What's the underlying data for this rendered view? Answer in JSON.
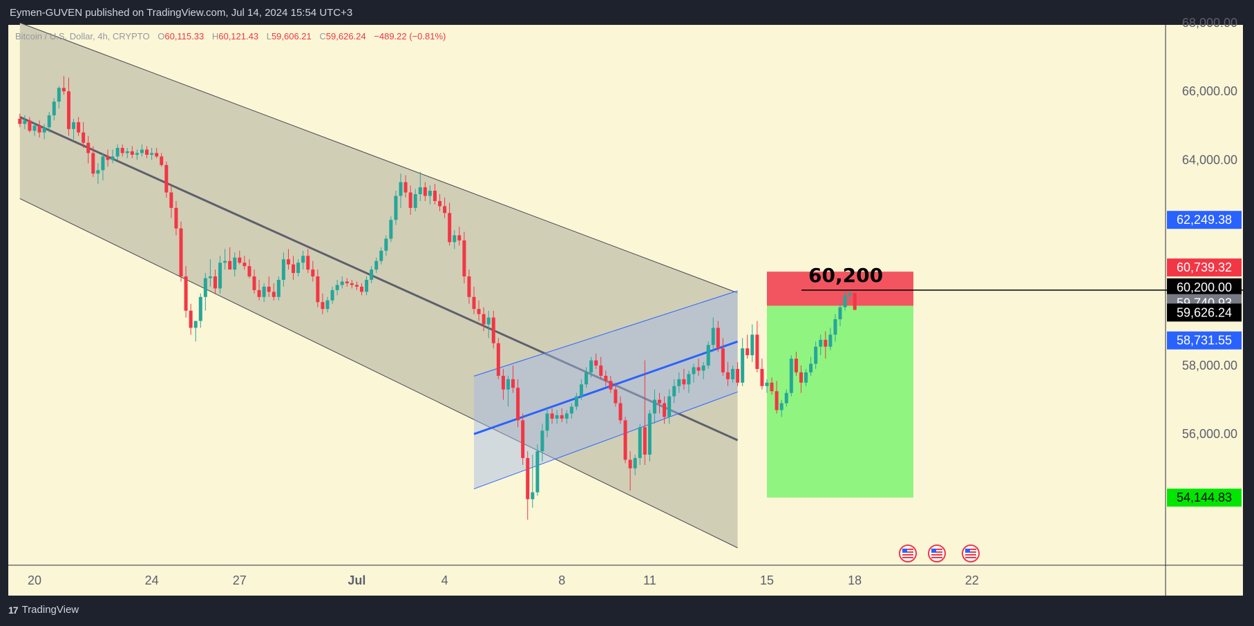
{
  "header": {
    "publisher": "Eymen-GUVEN published on TradingView.com, Jul 14, 2024 15:54 UTC+3"
  },
  "legend": {
    "symbol": "Bitcoin / U.S. Dollar, 4h, CRYPTO",
    "o_label": "O",
    "o_value": "60,115.33",
    "h_label": "H",
    "h_value": "60,121.43",
    "l_label": "L",
    "l_value": "59,606.21",
    "c_label": "C",
    "c_value": "59,626.24",
    "change": "−489.22 (−0.81%)"
  },
  "footer": {
    "brand": "TradingView",
    "logo_mark": "17"
  },
  "colors": {
    "background": "#fbf6d6",
    "up": "#26a69a",
    "down": "#f23645",
    "frame": "#1e222d"
  },
  "chart_data": {
    "type": "candlestick",
    "title": "Bitcoin / U.S. Dollar, 4h, CRYPTO",
    "ylim": [
      52000,
      68000
    ],
    "y_ticks": [
      "68,000.00",
      "66,000.00",
      "64,000.00",
      "58,000.00",
      "56,000.00"
    ],
    "x_ticks": [
      "20",
      "24",
      "27",
      "Jul",
      "4",
      "8",
      "11",
      "15",
      "18",
      "22"
    ],
    "price_tags": [
      {
        "text": "62,249.38",
        "value": 62249.38,
        "bg": "#2962ff",
        "fg": "#ffffff"
      },
      {
        "text": "60,739.32",
        "value": 60739.32,
        "bg": "#f23645",
        "fg": "#ffffff"
      },
      {
        "text": "60,200.00",
        "value": 60200.0,
        "bg": "#000000",
        "fg": "#ffffff"
      },
      {
        "text": "59,740.93",
        "value": 59740.93,
        "bg": "#787b86",
        "fg": "#ffffff"
      },
      {
        "text": "59,626.24",
        "value": 59626.24,
        "bg": "#000000",
        "fg": "#ffffff"
      },
      {
        "text": "58,731.55",
        "value": 58731.55,
        "bg": "#2962ff",
        "fg": "#ffffff"
      },
      {
        "text": "54,144.83",
        "value": 54144.83,
        "bg": "#00e600",
        "fg": "#000000"
      }
    ],
    "annotations": [
      {
        "text": "60,200",
        "value": 60200
      }
    ],
    "position_tool": {
      "entry": 59740.93,
      "stop": 60739.32,
      "target": 54144.83,
      "start": "Jul 15",
      "end": "Jul 20"
    },
    "descending_channel": {
      "upper": [
        [
          "Jun 19 12:00",
          68000
        ],
        [
          "Jul 14",
          60120
        ]
      ],
      "middle": [
        [
          "Jun 19 12:00",
          65250
        ],
        [
          "Jul 14",
          55820
        ]
      ],
      "lower": [
        [
          "Jun 19 12:00",
          62870
        ],
        [
          "Jul 14",
          52680
        ]
      ]
    },
    "ascending_channel": {
      "upper": [
        [
          "Jul 5",
          57690
        ],
        [
          "Jul 14",
          60180
        ]
      ],
      "middle": [
        [
          "Jul 5",
          56000
        ],
        [
          "Jul 14",
          58700
        ]
      ],
      "lower": [
        [
          "Jul 5",
          54400
        ],
        [
          "Jul 14",
          57230
        ]
      ]
    },
    "candles": [
      {
        "o": 65200,
        "h": 65350,
        "l": 64950,
        "c": 65050
      },
      {
        "o": 65050,
        "h": 65300,
        "l": 64900,
        "c": 65150
      },
      {
        "o": 65150,
        "h": 65250,
        "l": 64800,
        "c": 64850
      },
      {
        "o": 64850,
        "h": 65100,
        "l": 64700,
        "c": 65000
      },
      {
        "o": 65000,
        "h": 65150,
        "l": 64650,
        "c": 64800
      },
      {
        "o": 64800,
        "h": 65050,
        "l": 64600,
        "c": 64950
      },
      {
        "o": 64950,
        "h": 65400,
        "l": 64800,
        "c": 65300
      },
      {
        "o": 65300,
        "h": 65800,
        "l": 65150,
        "c": 65700
      },
      {
        "o": 65700,
        "h": 66150,
        "l": 65500,
        "c": 66100
      },
      {
        "o": 66100,
        "h": 66450,
        "l": 65900,
        "c": 66000
      },
      {
        "o": 66000,
        "h": 66400,
        "l": 64700,
        "c": 64900
      },
      {
        "o": 64900,
        "h": 65200,
        "l": 64600,
        "c": 65100
      },
      {
        "o": 65100,
        "h": 65250,
        "l": 64700,
        "c": 64800
      },
      {
        "o": 64800,
        "h": 65100,
        "l": 64350,
        "c": 64500
      },
      {
        "o": 64500,
        "h": 64700,
        "l": 63900,
        "c": 64200
      },
      {
        "o": 64200,
        "h": 64400,
        "l": 63500,
        "c": 63600
      },
      {
        "o": 63600,
        "h": 63900,
        "l": 63300,
        "c": 63700
      },
      {
        "o": 63700,
        "h": 64200,
        "l": 63400,
        "c": 64100
      },
      {
        "o": 64100,
        "h": 64300,
        "l": 63800,
        "c": 64000
      },
      {
        "o": 64000,
        "h": 64300,
        "l": 63900,
        "c": 64100
      },
      {
        "o": 64100,
        "h": 64450,
        "l": 64000,
        "c": 64350
      },
      {
        "o": 64350,
        "h": 64450,
        "l": 64100,
        "c": 64200
      },
      {
        "o": 64200,
        "h": 64350,
        "l": 64050,
        "c": 64250
      },
      {
        "o": 64250,
        "h": 64400,
        "l": 64050,
        "c": 64150
      },
      {
        "o": 64150,
        "h": 64300,
        "l": 64000,
        "c": 64200
      },
      {
        "o": 64200,
        "h": 64450,
        "l": 64100,
        "c": 64300
      },
      {
        "o": 64300,
        "h": 64400,
        "l": 64050,
        "c": 64150
      },
      {
        "o": 64150,
        "h": 64350,
        "l": 64000,
        "c": 64200
      },
      {
        "o": 64200,
        "h": 64350,
        "l": 64050,
        "c": 64100
      },
      {
        "o": 64100,
        "h": 64200,
        "l": 63800,
        "c": 63850
      },
      {
        "o": 63850,
        "h": 63950,
        "l": 62900,
        "c": 63050
      },
      {
        "o": 63050,
        "h": 63300,
        "l": 62300,
        "c": 62600
      },
      {
        "o": 62600,
        "h": 62800,
        "l": 61800,
        "c": 62000
      },
      {
        "o": 62000,
        "h": 62200,
        "l": 60450,
        "c": 60600
      },
      {
        "o": 60600,
        "h": 60900,
        "l": 59400,
        "c": 59600
      },
      {
        "o": 59600,
        "h": 59800,
        "l": 58900,
        "c": 59100
      },
      {
        "o": 59100,
        "h": 59300,
        "l": 58700,
        "c": 59300
      },
      {
        "o": 59300,
        "h": 60100,
        "l": 59100,
        "c": 60000
      },
      {
        "o": 60000,
        "h": 60700,
        "l": 59600,
        "c": 60550
      },
      {
        "o": 60550,
        "h": 61100,
        "l": 60300,
        "c": 60600
      },
      {
        "o": 60600,
        "h": 60800,
        "l": 60100,
        "c": 60250
      },
      {
        "o": 60250,
        "h": 61200,
        "l": 60100,
        "c": 61000
      },
      {
        "o": 61000,
        "h": 61400,
        "l": 60800,
        "c": 61050
      },
      {
        "o": 61050,
        "h": 61450,
        "l": 60900,
        "c": 60800
      },
      {
        "o": 60800,
        "h": 61300,
        "l": 60600,
        "c": 61150
      },
      {
        "o": 61150,
        "h": 61350,
        "l": 60950,
        "c": 61000
      },
      {
        "o": 61000,
        "h": 61200,
        "l": 60800,
        "c": 60900
      },
      {
        "o": 60900,
        "h": 61100,
        "l": 60550,
        "c": 60600
      },
      {
        "o": 60600,
        "h": 60800,
        "l": 60100,
        "c": 60200
      },
      {
        "o": 60200,
        "h": 60500,
        "l": 59900,
        "c": 60000
      },
      {
        "o": 60000,
        "h": 60400,
        "l": 59850,
        "c": 60300
      },
      {
        "o": 60300,
        "h": 60600,
        "l": 60000,
        "c": 60150
      },
      {
        "o": 60150,
        "h": 60400,
        "l": 59900,
        "c": 60000
      },
      {
        "o": 60000,
        "h": 60600,
        "l": 59900,
        "c": 60500
      },
      {
        "o": 60500,
        "h": 61300,
        "l": 60300,
        "c": 61100
      },
      {
        "o": 61100,
        "h": 61400,
        "l": 60800,
        "c": 60950
      },
      {
        "o": 60950,
        "h": 61200,
        "l": 60500,
        "c": 60700
      },
      {
        "o": 60700,
        "h": 61100,
        "l": 60600,
        "c": 61000
      },
      {
        "o": 61000,
        "h": 61350,
        "l": 60800,
        "c": 61200
      },
      {
        "o": 61200,
        "h": 61400,
        "l": 60700,
        "c": 60800
      },
      {
        "o": 60800,
        "h": 61050,
        "l": 60450,
        "c": 60600
      },
      {
        "o": 60600,
        "h": 60800,
        "l": 59700,
        "c": 59850
      },
      {
        "o": 59850,
        "h": 60100,
        "l": 59500,
        "c": 59650
      },
      {
        "o": 59650,
        "h": 60000,
        "l": 59550,
        "c": 59900
      },
      {
        "o": 59900,
        "h": 60300,
        "l": 59800,
        "c": 60200
      },
      {
        "o": 60200,
        "h": 60500,
        "l": 60050,
        "c": 60350
      },
      {
        "o": 60350,
        "h": 60600,
        "l": 60250,
        "c": 60450
      },
      {
        "o": 60450,
        "h": 60550,
        "l": 60300,
        "c": 60400
      },
      {
        "o": 60400,
        "h": 60500,
        "l": 60250,
        "c": 60350
      },
      {
        "o": 60350,
        "h": 60450,
        "l": 60200,
        "c": 60300
      },
      {
        "o": 60300,
        "h": 60400,
        "l": 60050,
        "c": 60150
      },
      {
        "o": 60150,
        "h": 60600,
        "l": 60050,
        "c": 60500
      },
      {
        "o": 60500,
        "h": 60900,
        "l": 60400,
        "c": 60800
      },
      {
        "o": 60800,
        "h": 61150,
        "l": 60700,
        "c": 61050
      },
      {
        "o": 61050,
        "h": 61450,
        "l": 60950,
        "c": 61350
      },
      {
        "o": 61350,
        "h": 61800,
        "l": 61200,
        "c": 61700
      },
      {
        "o": 61700,
        "h": 62350,
        "l": 61600,
        "c": 62250
      },
      {
        "o": 62250,
        "h": 63100,
        "l": 62100,
        "c": 62950
      },
      {
        "o": 62950,
        "h": 63600,
        "l": 62600,
        "c": 63350
      },
      {
        "o": 63350,
        "h": 63550,
        "l": 62900,
        "c": 63050
      },
      {
        "o": 63050,
        "h": 63250,
        "l": 62400,
        "c": 62600
      },
      {
        "o": 62600,
        "h": 63150,
        "l": 62500,
        "c": 63000
      },
      {
        "o": 63000,
        "h": 63650,
        "l": 62800,
        "c": 63200
      },
      {
        "o": 63200,
        "h": 63350,
        "l": 62800,
        "c": 62950
      },
      {
        "o": 62950,
        "h": 63250,
        "l": 62700,
        "c": 63100
      },
      {
        "o": 63100,
        "h": 63300,
        "l": 62700,
        "c": 62800
      },
      {
        "o": 62800,
        "h": 63000,
        "l": 62500,
        "c": 62650
      },
      {
        "o": 62650,
        "h": 62900,
        "l": 62300,
        "c": 62450
      },
      {
        "o": 62450,
        "h": 62750,
        "l": 61500,
        "c": 61600
      },
      {
        "o": 61600,
        "h": 61950,
        "l": 61400,
        "c": 61800
      },
      {
        "o": 61800,
        "h": 62050,
        "l": 61500,
        "c": 61650
      },
      {
        "o": 61650,
        "h": 61900,
        "l": 60400,
        "c": 60600
      },
      {
        "o": 60600,
        "h": 60800,
        "l": 59800,
        "c": 60000
      },
      {
        "o": 60000,
        "h": 60300,
        "l": 59500,
        "c": 59650
      },
      {
        "o": 59650,
        "h": 59900,
        "l": 59300,
        "c": 59500
      },
      {
        "o": 59500,
        "h": 59700,
        "l": 59000,
        "c": 59200
      },
      {
        "o": 59200,
        "h": 59600,
        "l": 58800,
        "c": 59400
      },
      {
        "o": 59400,
        "h": 59600,
        "l": 58500,
        "c": 58650
      },
      {
        "o": 58650,
        "h": 58800,
        "l": 57600,
        "c": 57700
      },
      {
        "o": 57700,
        "h": 57900,
        "l": 57000,
        "c": 57300
      },
      {
        "o": 57300,
        "h": 57700,
        "l": 56800,
        "c": 57600
      },
      {
        "o": 57600,
        "h": 58000,
        "l": 57200,
        "c": 57350
      },
      {
        "o": 57350,
        "h": 57600,
        "l": 56200,
        "c": 56400
      },
      {
        "o": 56400,
        "h": 56600,
        "l": 55100,
        "c": 55300
      },
      {
        "o": 55300,
        "h": 55500,
        "l": 53500,
        "c": 54100
      },
      {
        "o": 54100,
        "h": 55400,
        "l": 53850,
        "c": 54300
      },
      {
        "o": 54300,
        "h": 55700,
        "l": 54200,
        "c": 55500
      },
      {
        "o": 55500,
        "h": 56300,
        "l": 55200,
        "c": 56100
      },
      {
        "o": 56100,
        "h": 56800,
        "l": 55900,
        "c": 56600
      },
      {
        "o": 56600,
        "h": 56750,
        "l": 56300,
        "c": 56450
      },
      {
        "o": 56450,
        "h": 56700,
        "l": 56300,
        "c": 56550
      },
      {
        "o": 56550,
        "h": 56750,
        "l": 56350,
        "c": 56450
      },
      {
        "o": 56450,
        "h": 56700,
        "l": 56300,
        "c": 56600
      },
      {
        "o": 56600,
        "h": 56900,
        "l": 56450,
        "c": 56800
      },
      {
        "o": 56800,
        "h": 57200,
        "l": 56700,
        "c": 57100
      },
      {
        "o": 57100,
        "h": 57600,
        "l": 57000,
        "c": 57450
      },
      {
        "o": 57450,
        "h": 57950,
        "l": 57350,
        "c": 57800
      },
      {
        "o": 57800,
        "h": 58250,
        "l": 57650,
        "c": 58150
      },
      {
        "o": 58150,
        "h": 58350,
        "l": 57900,
        "c": 58000
      },
      {
        "o": 58000,
        "h": 58250,
        "l": 57600,
        "c": 57700
      },
      {
        "o": 57700,
        "h": 57850,
        "l": 57400,
        "c": 57550
      },
      {
        "o": 57550,
        "h": 57700,
        "l": 57200,
        "c": 57300
      },
      {
        "o": 57300,
        "h": 57500,
        "l": 56800,
        "c": 56900
      },
      {
        "o": 56900,
        "h": 57100,
        "l": 56300,
        "c": 56400
      },
      {
        "o": 56400,
        "h": 56500,
        "l": 55150,
        "c": 55250
      },
      {
        "o": 55250,
        "h": 55500,
        "l": 54350,
        "c": 55000
      },
      {
        "o": 55000,
        "h": 55400,
        "l": 54800,
        "c": 55300
      },
      {
        "o": 55300,
        "h": 56300,
        "l": 55100,
        "c": 56200
      },
      {
        "o": 56200,
        "h": 58150,
        "l": 55100,
        "c": 55400
      },
      {
        "o": 55400,
        "h": 56700,
        "l": 55200,
        "c": 56600
      },
      {
        "o": 56600,
        "h": 57300,
        "l": 56300,
        "c": 57000
      },
      {
        "o": 57000,
        "h": 57200,
        "l": 56600,
        "c": 56900
      },
      {
        "o": 56900,
        "h": 57100,
        "l": 56300,
        "c": 56500
      },
      {
        "o": 56500,
        "h": 57300,
        "l": 56300,
        "c": 57100
      },
      {
        "o": 57100,
        "h": 57600,
        "l": 56900,
        "c": 57400
      },
      {
        "o": 57400,
        "h": 57800,
        "l": 57200,
        "c": 57600
      },
      {
        "o": 57600,
        "h": 57900,
        "l": 57300,
        "c": 57450
      },
      {
        "o": 57450,
        "h": 57850,
        "l": 57200,
        "c": 57750
      },
      {
        "o": 57750,
        "h": 58050,
        "l": 57500,
        "c": 57950
      },
      {
        "o": 57950,
        "h": 58200,
        "l": 57700,
        "c": 57850
      },
      {
        "o": 57850,
        "h": 58100,
        "l": 57600,
        "c": 58000
      },
      {
        "o": 58000,
        "h": 58700,
        "l": 57900,
        "c": 58600
      },
      {
        "o": 58600,
        "h": 59400,
        "l": 58400,
        "c": 59100
      },
      {
        "o": 59100,
        "h": 59300,
        "l": 58400,
        "c": 58500
      },
      {
        "o": 58500,
        "h": 58800,
        "l": 57700,
        "c": 57800
      },
      {
        "o": 57800,
        "h": 58100,
        "l": 57400,
        "c": 57600
      },
      {
        "o": 57600,
        "h": 58000,
        "l": 57500,
        "c": 57900
      },
      {
        "o": 57900,
        "h": 58100,
        "l": 57400,
        "c": 57500
      },
      {
        "o": 57500,
        "h": 58800,
        "l": 57400,
        "c": 58500
      },
      {
        "o": 58500,
        "h": 58900,
        "l": 58200,
        "c": 58300
      },
      {
        "o": 58300,
        "h": 59200,
        "l": 58100,
        "c": 58900
      },
      {
        "o": 58900,
        "h": 59300,
        "l": 57800,
        "c": 57900
      },
      {
        "o": 57900,
        "h": 58200,
        "l": 57300,
        "c": 57400
      },
      {
        "o": 57400,
        "h": 57600,
        "l": 57200,
        "c": 57500
      },
      {
        "o": 57500,
        "h": 57650,
        "l": 57150,
        "c": 57250
      },
      {
        "o": 57250,
        "h": 57550,
        "l": 56600,
        "c": 56700
      },
      {
        "o": 56700,
        "h": 57000,
        "l": 56500,
        "c": 56900
      },
      {
        "o": 56900,
        "h": 57300,
        "l": 56800,
        "c": 57200
      },
      {
        "o": 57200,
        "h": 58300,
        "l": 57100,
        "c": 58200
      },
      {
        "o": 58200,
        "h": 58400,
        "l": 57700,
        "c": 57800
      },
      {
        "o": 57800,
        "h": 58000,
        "l": 57200,
        "c": 57500
      },
      {
        "o": 57500,
        "h": 57900,
        "l": 57400,
        "c": 57800
      },
      {
        "o": 57800,
        "h": 58250,
        "l": 57700,
        "c": 58050
      },
      {
        "o": 58050,
        "h": 58700,
        "l": 57900,
        "c": 58550
      },
      {
        "o": 58550,
        "h": 58900,
        "l": 58300,
        "c": 58750
      },
      {
        "o": 58750,
        "h": 59000,
        "l": 58200,
        "c": 58550
      },
      {
        "o": 58550,
        "h": 59100,
        "l": 58450,
        "c": 58900
      },
      {
        "o": 58900,
        "h": 59500,
        "l": 58700,
        "c": 59350
      },
      {
        "o": 59350,
        "h": 59800,
        "l": 59150,
        "c": 59700
      },
      {
        "o": 59700,
        "h": 60200,
        "l": 59600,
        "c": 60050
      },
      {
        "o": 60050,
        "h": 60180,
        "l": 59900,
        "c": 60110
      },
      {
        "o": 60115,
        "h": 60121,
        "l": 59606,
        "c": 59626
      }
    ]
  }
}
